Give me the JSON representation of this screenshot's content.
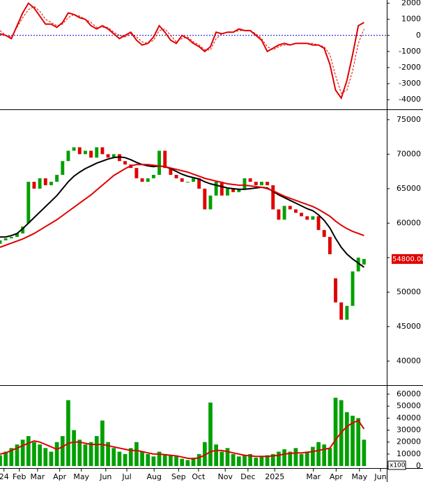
{
  "chart_data": [
    {
      "type": "line",
      "xlim": [
        0,
        68
      ],
      "ylim": [
        -4600,
        2200
      ],
      "yticks": [
        2000,
        1000,
        0,
        -1000,
        -2000,
        -3000,
        -4000
      ],
      "hline": 0,
      "hline_color": "#0000cc",
      "series": [
        {
          "color": "#e00000",
          "style": "solid",
          "values": [
            100,
            0,
            -200,
            600,
            1400,
            2000,
            1700,
            1200,
            700,
            700,
            500,
            800,
            1400,
            1300,
            1100,
            1000,
            600,
            400,
            600,
            400,
            100,
            -200,
            0,
            200,
            -300,
            -600,
            -500,
            -100,
            600,
            200,
            -300,
            -500,
            0,
            -200,
            -500,
            -700,
            -1000,
            -700,
            200,
            100,
            200,
            200,
            400,
            300,
            300,
            0,
            -300,
            -1000,
            -800,
            -600,
            -500,
            -600,
            -500,
            -500,
            -500,
            -600,
            -600,
            -800,
            -1800,
            -3400,
            -3900,
            -2800,
            -1200,
            600,
            800
          ]
        },
        {
          "color": "#e00000",
          "style": "dashed",
          "values": [
            300,
            0,
            -100,
            500,
            1100,
            1600,
            1800,
            1500,
            1000,
            800,
            600,
            700,
            1100,
            1300,
            1200,
            1000,
            800,
            500,
            500,
            500,
            200,
            0,
            -100,
            100,
            -100,
            -400,
            -500,
            -300,
            300,
            400,
            0,
            -400,
            -200,
            -100,
            -400,
            -600,
            -900,
            -900,
            -200,
            100,
            200,
            200,
            300,
            300,
            300,
            100,
            -200,
            -700,
            -900,
            -700,
            -600,
            -600,
            -500,
            -500,
            -500,
            -500,
            -600,
            -700,
            -1200,
            -2500,
            -3600,
            -3400,
            -2200,
            -500,
            400
          ]
        }
      ]
    },
    {
      "type": "candlestick",
      "xlim": [
        0,
        68
      ],
      "ylim": [
        36500,
        76400
      ],
      "yticks": [
        75000,
        70000,
        65000,
        60000,
        55000,
        50000,
        45000,
        40000
      ],
      "up_color": "#00a000",
      "down_color": "#e00000",
      "open": [
        57000,
        57500,
        57800,
        58000,
        58500,
        60000,
        66000,
        65000,
        66500,
        65500,
        66000,
        67000,
        69000,
        70500,
        71000,
        70000,
        70500,
        69500,
        71000,
        70000,
        69500,
        70000,
        69000,
        68500,
        68000,
        66500,
        66000,
        66500,
        67000,
        70500,
        68000,
        67000,
        66500,
        66000,
        66000,
        66500,
        65000,
        62000,
        64000,
        66000,
        64000,
        65000,
        64500,
        65000,
        66500,
        66000,
        65500,
        66000,
        65500,
        62000,
        60500,
        62500,
        62000,
        61500,
        61000,
        60500,
        61000,
        59000,
        58000,
        52000,
        48500,
        46000,
        48000,
        53000,
        54000
      ],
      "close": [
        57500,
        57800,
        58000,
        58500,
        59500,
        66000,
        65000,
        66500,
        65500,
        66000,
        67000,
        69000,
        70500,
        71000,
        70000,
        70500,
        69500,
        71000,
        70000,
        69500,
        70000,
        69000,
        68500,
        68000,
        66500,
        66000,
        66500,
        67000,
        70500,
        68000,
        67000,
        66500,
        66000,
        66000,
        66500,
        65000,
        62000,
        64000,
        66000,
        64000,
        65000,
        64500,
        65000,
        66500,
        66000,
        65500,
        66000,
        65500,
        62000,
        60500,
        62500,
        62000,
        61500,
        61000,
        60500,
        61000,
        59000,
        58000,
        55500,
        48500,
        46000,
        48000,
        53000,
        55000,
        54800
      ],
      "series": [
        {
          "color": "#000000",
          "values": [
            58000,
            58000,
            58200,
            58500,
            59200,
            60000,
            60800,
            61600,
            62400,
            63200,
            64000,
            65000,
            66000,
            66800,
            67400,
            67900,
            68300,
            68700,
            69000,
            69300,
            69500,
            69600,
            69500,
            69200,
            68800,
            68500,
            68300,
            68200,
            68300,
            68200,
            67900,
            67500,
            67100,
            66800,
            66600,
            66400,
            66000,
            65700,
            65500,
            65300,
            65100,
            65000,
            64900,
            64900,
            65000,
            65100,
            65200,
            65100,
            64600,
            64100,
            63700,
            63300,
            62900,
            62500,
            62100,
            61800,
            61200,
            60400,
            59300,
            57800,
            56500,
            55500,
            54800,
            54200,
            53600
          ]
        },
        {
          "color": "#e00000",
          "values": [
            56500,
            56800,
            57100,
            57400,
            57700,
            58100,
            58500,
            59000,
            59500,
            60000,
            60500,
            61100,
            61700,
            62300,
            62900,
            63500,
            64100,
            64800,
            65500,
            66200,
            66900,
            67400,
            67900,
            68300,
            68500,
            68500,
            68500,
            68400,
            68300,
            68200,
            68000,
            67800,
            67600,
            67400,
            67100,
            66800,
            66500,
            66300,
            66100,
            65900,
            65700,
            65600,
            65500,
            65500,
            65400,
            65300,
            65200,
            65000,
            64700,
            64300,
            63900,
            63600,
            63300,
            63000,
            62700,
            62400,
            62000,
            61500,
            61000,
            60300,
            59700,
            59200,
            58800,
            58500,
            58200
          ]
        }
      ],
      "last_price": {
        "value": 54800,
        "label": "54800.00"
      },
      "last_price_color": "#e00000"
    },
    {
      "type": "bar",
      "xlim": [
        0,
        68
      ],
      "ylim": [
        -1700,
        67500
      ],
      "yticks": [
        60000,
        50000,
        40000,
        30000,
        20000,
        10000,
        0
      ],
      "color": "#00a000",
      "unit_label": "x100",
      "values": [
        9000,
        12000,
        15000,
        18000,
        22000,
        25000,
        20000,
        18000,
        15000,
        12000,
        20000,
        25000,
        55000,
        30000,
        22000,
        18000,
        20000,
        25000,
        38000,
        20000,
        15000,
        12000,
        10000,
        15000,
        20000,
        12000,
        10000,
        8000,
        12000,
        10000,
        9000,
        8000,
        6000,
        5000,
        7000,
        10000,
        20000,
        53000,
        18000,
        12000,
        15000,
        10000,
        8000,
        9000,
        10000,
        7000,
        8000,
        9000,
        10000,
        12000,
        14000,
        12000,
        15000,
        10000,
        12000,
        16000,
        20000,
        18000,
        15000,
        57000,
        55000,
        45000,
        42000,
        40000,
        22000
      ],
      "series": [
        {
          "color": "#e00000",
          "values": [
            10000,
            11000,
            13000,
            15000,
            17000,
            19000,
            21000,
            20000,
            18000,
            16000,
            14000,
            16000,
            19000,
            20000,
            20000,
            19000,
            18000,
            18000,
            18000,
            17000,
            16000,
            15000,
            14000,
            13000,
            13000,
            12000,
            11000,
            10000,
            10000,
            9500,
            9000,
            8500,
            7500,
            6500,
            6000,
            7000,
            9000,
            12000,
            13000,
            13000,
            12000,
            11000,
            10000,
            9000,
            8500,
            8000,
            8000,
            8000,
            8500,
            9000,
            10000,
            10500,
            11000,
            11000,
            11500,
            12000,
            13000,
            14000,
            15000,
            22000,
            28000,
            33000,
            36000,
            38000,
            31000
          ]
        }
      ],
      "xticks": [
        {
          "value": 0.7,
          "label": "24"
        },
        {
          "value": 3.4,
          "label": "Feb"
        },
        {
          "value": 6.6,
          "label": "Mar"
        },
        {
          "value": 10.5,
          "label": "Apr"
        },
        {
          "value": 14.3,
          "label": "May"
        },
        {
          "value": 18.6,
          "label": "Jun"
        },
        {
          "value": 22.3,
          "label": "Jul"
        },
        {
          "value": 27.1,
          "label": "Aug"
        },
        {
          "value": 31.4,
          "label": "Sep"
        },
        {
          "value": 34.9,
          "label": "Oct"
        },
        {
          "value": 39.6,
          "label": "Nov"
        },
        {
          "value": 43.6,
          "label": "Dec"
        },
        {
          "value": 48.3,
          "label": "2025"
        },
        {
          "value": 55.1,
          "label": "Mar"
        },
        {
          "value": 59.1,
          "label": "Apr"
        },
        {
          "value": 63.2,
          "label": "May"
        },
        {
          "value": 66.9,
          "label": "Jun"
        }
      ]
    }
  ]
}
